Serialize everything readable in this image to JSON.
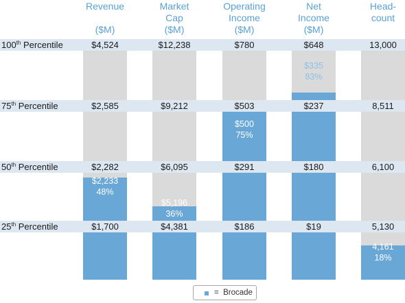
{
  "colors": {
    "grey": "#dadada",
    "blue": "#68a7d6",
    "header_text": "#5aa0d4",
    "band": "#dde7f1",
    "annotation_light": "#8fc0e6"
  },
  "chart_data": {
    "type": "bar",
    "columns": [
      {
        "title": "Revenue\n\n($M)"
      },
      {
        "title": "Market\nCap\n($M)"
      },
      {
        "title": "Operating\nIncome\n($M)"
      },
      {
        "title": "Net\nIncome\n($M)"
      },
      {
        "title": "Head-\ncount"
      }
    ],
    "percentile_rows": [
      {
        "ord": "100",
        "suffix": "th",
        "word": " Percentile",
        "values": [
          "$4,524",
          "$12,238",
          "$780",
          "$648",
          "13,000"
        ]
      },
      {
        "ord": "75",
        "suffix": "th",
        "word": " Percentile",
        "values": [
          "$2,585",
          "$9,212",
          "$503",
          "$237",
          "8,511"
        ]
      },
      {
        "ord": "50",
        "suffix": "th",
        "word": " Percentile",
        "values": [
          "$2,282",
          "$6,095",
          "$291",
          "$180",
          "6,100"
        ]
      },
      {
        "ord": "25",
        "suffix": "th",
        "word": " Percentile",
        "values": [
          "$1,700",
          "$4,381",
          "$186",
          "$19",
          "5,130"
        ]
      }
    ],
    "brocade": [
      {
        "label": "$2,233\n48%",
        "percentile": 48
      },
      {
        "label": "$5,196\n36%",
        "percentile": 36
      },
      {
        "label": "$500\n75%",
        "percentile": 75
      },
      {
        "label": "$335\n83%",
        "percentile": 83
      },
      {
        "label": "4,161\n18%",
        "percentile": 18
      }
    ],
    "legend": {
      "label": "=  Brocade"
    }
  }
}
